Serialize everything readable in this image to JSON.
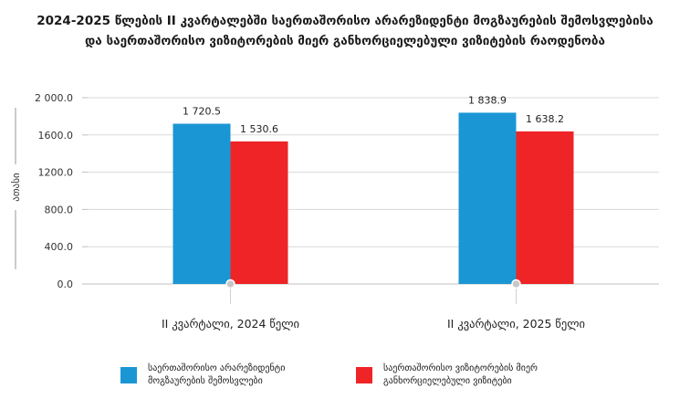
{
  "title": "2024-2025 წლების II კვარტალებში საერთაშორისო არარეზიდენტი მოგზაურების შემოსვლებისა და საერთაშორისო ვიზიტორების მიერ განხორციელებული ვიზიტების რაოდენობა",
  "colors": {
    "series1": "#1a96d4",
    "series2": "#ee2427",
    "grid": "#d9d9d9",
    "axis": "#bfbfbf"
  },
  "chart_data": {
    "type": "bar",
    "title": "2024-2025 წლების II კვარტალებში საერთაშორისო არარეზიდენტი მოგზაურების შემოსვლებისა და საერთაშორისო ვიზიტორების მიერ განხორციელებული ვიზიტების რაოდენობა",
    "ylabel": "ათასი",
    "xlabel": "",
    "categories": [
      "II კვარტალი, 2024 წელი",
      "II კვარტალი, 2025 წელი"
    ],
    "series": [
      {
        "name": "საერთაშორისო არარეზიდენტი მოგზაურების შემოსვლები",
        "values": [
          1720.5,
          1838.9
        ],
        "labels": [
          "1 720.5",
          "1 838.9"
        ],
        "color": "#1a96d4"
      },
      {
        "name": "საერთაშორისო ვიზიტორების მიერ განხორციელებული ვიზიტები",
        "values": [
          1530.6,
          1638.2
        ],
        "labels": [
          "1 530.6",
          "1 638.2"
        ],
        "color": "#ee2427"
      }
    ],
    "ylim": [
      0,
      2000
    ],
    "yticks": [
      0,
      400,
      800,
      1200,
      1600,
      2000
    ],
    "ytick_labels": [
      "0.0",
      "400.0",
      "800.0",
      "1200.0",
      "1600.0",
      "2 000.0"
    ],
    "grid": true,
    "legend": "bottom"
  }
}
